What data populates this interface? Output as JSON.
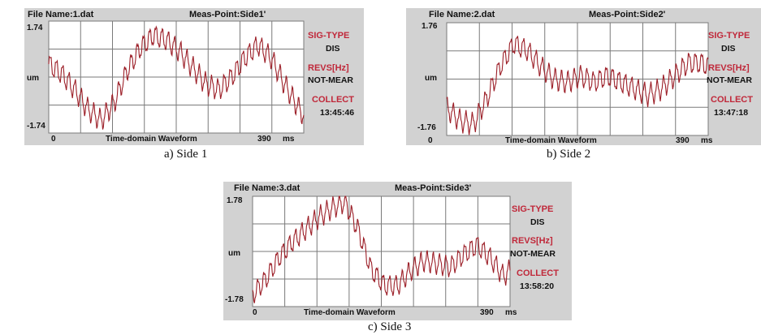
{
  "panels": [
    {
      "file_name": "File Name:1.dat",
      "meas_point": "Meas-Point:Side1'",
      "y_top": "1.74",
      "y_unit": "um",
      "y_bottom": "-1.74",
      "x_start": "0",
      "x_title": "Time-domain Waveform",
      "x_end": "390",
      "x_unit": "ms",
      "sig_type_label": "SIG-TYPE",
      "sig_type_value": "DIS",
      "revs_label": "REVS[Hz]",
      "revs_value": "NOT-MEAR",
      "collect_label": "COLLECT",
      "collect_value": "13:45:46",
      "caption": "a)   Side 1"
    },
    {
      "file_name": "File Name:2.dat",
      "meas_point": "Meas-Point:Side2'",
      "y_top": "1.76",
      "y_unit": "um",
      "y_bottom": "-1.76",
      "x_start": "0",
      "x_title": "Time-domain Waveform",
      "x_end": "390",
      "x_unit": "ms",
      "sig_type_label": "SIG-TYPE",
      "sig_type_value": "DIS",
      "revs_label": "REVS[Hz]",
      "revs_value": "NOT-MEAR",
      "collect_label": "COLLECT",
      "collect_value": "13:47:18",
      "caption": "b)   Side 2"
    },
    {
      "file_name": "File Name:3.dat",
      "meas_point": "Meas-Point:Side3'",
      "y_top": "1.78",
      "y_unit": "um",
      "y_bottom": "-1.78",
      "x_start": "0",
      "x_title": "Time-domain Waveform",
      "x_end": "390",
      "x_unit": "ms",
      "sig_type_label": "SIG-TYPE",
      "sig_type_value": "DIS",
      "revs_label": "REVS[Hz]",
      "revs_value": "NOT-MEAR",
      "collect_label": "COLLECT",
      "collect_value": "13:58:20",
      "caption": "c)   Side 3"
    }
  ],
  "colors": {
    "panel_background": "#d2d2d2",
    "plot_background": "#ffffff",
    "grid": "#7a7a7a",
    "waveform": "#9c1f28",
    "label_red": "#c0283a"
  },
  "chart_data": [
    {
      "type": "line",
      "x": [
        0,
        20,
        40,
        60,
        80,
        100,
        120,
        140,
        160,
        180,
        200,
        220,
        240,
        260,
        280,
        300,
        320,
        340,
        360,
        380,
        390
      ],
      "series": [
        {
          "values": [
            0.4,
            0.1,
            -0.4,
            -1.0,
            -1.35,
            -0.8,
            0.2,
            0.9,
            1.3,
            1.15,
            0.8,
            0.3,
            -0.2,
            -0.4,
            0.0,
            0.6,
            1.0,
            0.6,
            -0.2,
            -0.9,
            -1.2
          ]
        }
      ],
      "xlim": [
        0,
        390
      ],
      "ylim": [
        -1.74,
        1.74
      ],
      "xlabel": "Time-domain Waveform",
      "ylabel": "um",
      "grid": true
    },
    {
      "type": "line",
      "x": [
        0,
        20,
        40,
        60,
        80,
        100,
        120,
        140,
        160,
        180,
        200,
        220,
        240,
        260,
        280,
        300,
        320,
        340,
        360,
        380,
        390
      ],
      "series": [
        {
          "values": [
            -0.9,
            -1.3,
            -1.4,
            -0.6,
            0.4,
            1.1,
            0.9,
            0.4,
            0.0,
            -0.1,
            0.1,
            -0.1,
            0.1,
            -0.1,
            -0.3,
            -0.5,
            -0.3,
            0.1,
            0.5,
            0.5,
            0.4
          ]
        }
      ],
      "xlim": [
        0,
        390
      ],
      "ylim": [
        -1.76,
        1.76
      ],
      "xlabel": "Time-domain Waveform",
      "ylabel": "um",
      "grid": true
    },
    {
      "type": "line",
      "x": [
        0,
        20,
        40,
        60,
        80,
        100,
        120,
        140,
        160,
        180,
        200,
        220,
        240,
        260,
        280,
        300,
        320,
        340,
        360,
        380,
        390
      ],
      "series": [
        {
          "values": [
            -1.4,
            -0.9,
            -0.2,
            0.3,
            0.7,
            1.1,
            1.4,
            1.6,
            0.7,
            -0.6,
            -1.1,
            -1.1,
            -0.6,
            -0.3,
            -0.4,
            -0.5,
            -0.1,
            0.2,
            -0.2,
            -0.8,
            -0.6
          ]
        }
      ],
      "xlim": [
        0,
        390
      ],
      "ylim": [
        -1.78,
        1.78
      ],
      "xlabel": "Time-domain Waveform",
      "ylabel": "um",
      "grid": true
    }
  ]
}
